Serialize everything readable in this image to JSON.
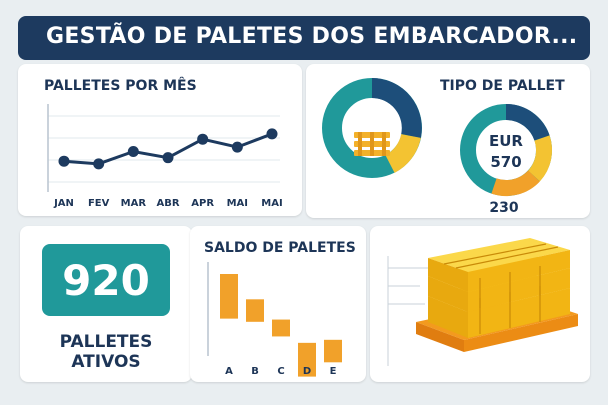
{
  "header": {
    "title": "GESTÃO DE PALETES DOS EMBARCADOR..."
  },
  "monthly": {
    "title": "PALLETES POR MÊS",
    "chart_data": {
      "type": "line",
      "categories": [
        "JAN",
        "FEV",
        "MAR",
        "ABR",
        "APR",
        "MAI",
        "MAI"
      ],
      "values": [
        3.5,
        3.2,
        4.6,
        3.9,
        6.0,
        5.1,
        6.6
      ],
      "ylim": [
        0,
        10
      ],
      "grid": true,
      "color": "#1d3a5f"
    }
  },
  "pallet_type": {
    "title": "TIPO DE PALLET",
    "donut_center_label": "EUR",
    "donut_center_value": "570",
    "bottom_value": "230",
    "colors": {
      "teal": "#20999a",
      "navy": "#1d4e7a",
      "yellow": "#f3c332",
      "orange": "#f1a12a"
    },
    "icon": "pallet-icon"
  },
  "kpi": {
    "value": "920",
    "label_line1": "PALLETES",
    "label_line2": "ATIVOS"
  },
  "balance": {
    "title": "SALDO DE PALETES",
    "chart_data": {
      "type": "bar",
      "categories": [
        "A",
        "B",
        "C",
        "D",
        "E"
      ],
      "values": [
        -7,
        -4,
        -3,
        -6,
        -4
      ],
      "bar_color": "#f1a12a"
    }
  },
  "illustration": {
    "icon": "stacked-pallets-icon",
    "colors": {
      "wood": "#f7c21d",
      "base": "#f39a1e"
    }
  }
}
